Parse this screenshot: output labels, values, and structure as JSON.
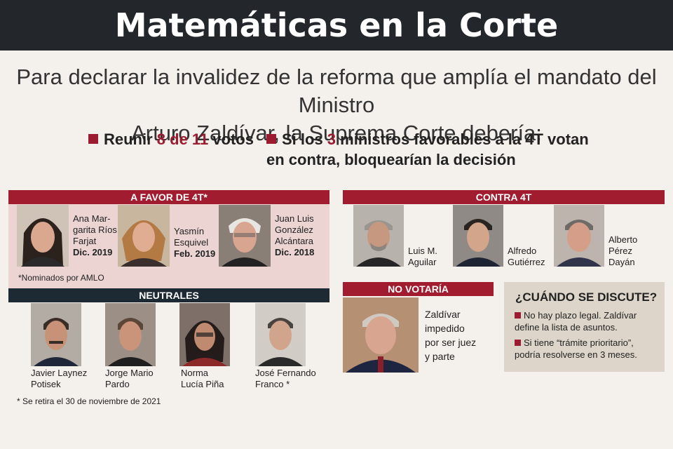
{
  "title": "Matemáticas en la Corte",
  "intro": {
    "line1": "Para declarar la invalidez de la reforma que amplía el mandato del Ministro",
    "line2": "Arturo Zaldívar, la Suprema Corte debería:"
  },
  "bullets": {
    "b1_pre": "Reunir ",
    "b1_num": "8 de 11",
    "b1_post": " votos",
    "b2_pre": "Si los ",
    "b2_num": "3",
    "b2_post": " ministros favorables a la 4T votan",
    "b2_line2": "en contra, bloquearían la decisión"
  },
  "favor": {
    "header": "A FAVOR DE 4T*",
    "members": [
      {
        "name": "Ana Mar-\ngarita Ríos\nFarjat",
        "date": "Dic. 2019"
      },
      {
        "name": "Yasmín\nEsquivel",
        "date": "Feb. 2019"
      },
      {
        "name": "Juan Luis\nGonzález\nAlcántara",
        "date": "Dic. 2018"
      }
    ],
    "note": "*Nominados por AMLO"
  },
  "neutrales": {
    "header": "NEUTRALES",
    "members": [
      {
        "name": "Javier Laynez\nPotisek"
      },
      {
        "name": "Jorge Mario\nPardo"
      },
      {
        "name": "Norma\nLucía Piña"
      },
      {
        "name": "José Fernando\nFranco *"
      }
    ],
    "footnote": "* Se retira el 30 de noviembre de 2021"
  },
  "contra": {
    "header": "CONTRA 4T",
    "members": [
      {
        "name": "Luis M.\nAguilar"
      },
      {
        "name": "Alfredo\nGutiérrez"
      },
      {
        "name": "Alberto\nPérez\nDayán"
      }
    ]
  },
  "no_votaria": {
    "header": "NO VOTARÍA",
    "text": "Zaldívar\nimpedido\npor ser juez\ny parte"
  },
  "cuando": {
    "title": "¿CUÁNDO SE DISCUTE?",
    "l1a": "No hay plazo legal. Zaldívar",
    "l1b": "define la lista de asuntos.",
    "l2a": "Si tiene “trámite prioritario”,",
    "l2b": "podría resolverse en 3 meses."
  },
  "colors": {
    "accent": "#a11c2f",
    "dark": "#1e2a33",
    "header_bg": "#23262b"
  }
}
